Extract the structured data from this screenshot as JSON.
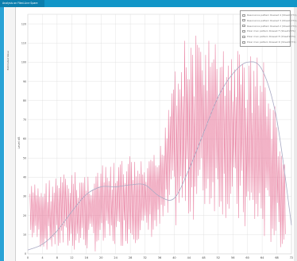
{
  "window": {
    "tab_title": "Analysis on Filed-Line Spare"
  },
  "y_axis_title": "Estimated Value",
  "colors": {
    "accent": "#1296c8",
    "signal": "#e8799c",
    "trend": "#a9aac4",
    "grid": "#dcdcdc"
  },
  "chart_data": {
    "type": "line",
    "xlabel": "",
    "ylabel": "Level dB",
    "xlim": [
      0,
      72
    ],
    "ylim": [
      0,
      125
    ],
    "x_ticks": [
      0,
      4,
      8,
      12,
      16,
      20,
      24,
      28,
      32,
      36,
      40,
      44,
      48,
      52,
      56,
      60,
      64,
      68,
      72
    ],
    "y_ticks": [
      0,
      10,
      20,
      30,
      40,
      50,
      60,
      70,
      80,
      90,
      100,
      110,
      120
    ],
    "grid": true,
    "legend_position": "top-right",
    "legend": [
      "Resonance pattern Rowset 4 (Sheet1771)",
      "Resonance pattern Rowset 3 (Sheet1771)",
      "Resonance pattern Rowset 2 (Sheet1771)",
      "Polar max pattern Rowset F (Sheet1771)",
      "Polar max pattern Rowset E (Sheet1771)",
      "Polar max pattern Rowset D (Sheet1771)"
    ],
    "series": [
      {
        "kind": "oscillating-signal",
        "envelope": {
          "x": [
            0,
            4,
            8,
            12,
            16,
            20,
            24,
            28,
            32,
            36,
            40,
            44,
            48,
            52,
            56,
            60,
            64,
            68,
            72
          ],
          "max": [
            36,
            38,
            42,
            43,
            44,
            46,
            48,
            52,
            47,
            55,
            110,
            114,
            116,
            110,
            109,
            108,
            106,
            74,
            30
          ],
          "min": [
            8,
            2,
            1,
            1,
            1,
            1,
            3,
            5,
            7,
            9,
            12,
            16,
            20,
            22,
            14,
            8,
            5,
            3,
            1
          ]
        }
      },
      {
        "kind": "smooth-trend",
        "x": [
          0,
          4,
          8,
          12,
          16,
          20,
          24,
          28,
          32,
          36,
          40,
          44,
          48,
          52,
          56,
          60,
          64,
          68,
          72
        ],
        "y": [
          2,
          5,
          12,
          22,
          31,
          35,
          35,
          36,
          36,
          30,
          29,
          44,
          63,
          82,
          94,
          100,
          96,
          70,
          15
        ]
      }
    ]
  }
}
